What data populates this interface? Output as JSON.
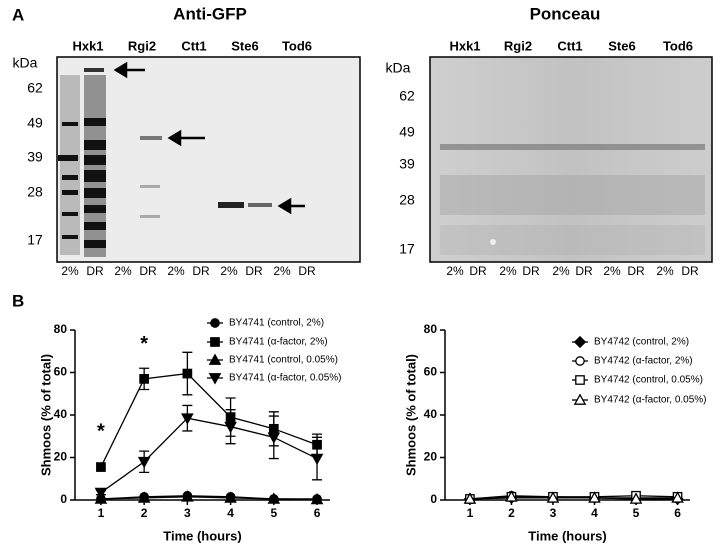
{
  "panels": {
    "a": "A",
    "b": "B"
  },
  "blots": [
    {
      "title": "Anti-GFP",
      "lanes": [
        "Hxk1",
        "Rgi2",
        "Ctt1",
        "Ste6",
        "Tod6"
      ],
      "unit": "kDa",
      "markers": [
        62,
        49,
        39,
        28,
        17
      ],
      "conditions": [
        "2%",
        "DR"
      ]
    },
    {
      "title": "Ponceau",
      "lanes": [
        "Hxk1",
        "Rgi2",
        "Ctt1",
        "Ste6",
        "Tod6"
      ],
      "unit": "kDa",
      "markers": [
        62,
        49,
        39,
        28,
        17
      ],
      "conditions": [
        "2%",
        "DR"
      ]
    }
  ],
  "chart_data": [
    {
      "type": "line",
      "xlabel": "Time (hours)",
      "ylabel": "Shmoos (% of total)",
      "x": [
        1,
        2,
        3,
        4,
        5,
        6
      ],
      "xlim": [
        0.4,
        6.3
      ],
      "xticks": [
        1,
        2,
        3,
        4,
        5,
        6
      ],
      "ylim": [
        0,
        80
      ],
      "yticks": [
        0,
        20,
        40,
        60,
        80
      ],
      "annotations": [
        {
          "text": "*",
          "x": 1,
          "y": 32
        },
        {
          "text": "*",
          "x": 2,
          "y": 73
        }
      ],
      "series": [
        {
          "name": "BY4741 (control, 2%)",
          "color": "#000000",
          "marker": "circle",
          "values": [
            0.5,
            1.5,
            2,
            1.5,
            0.5,
            0.5
          ]
        },
        {
          "name": "BY4741 (α-factor, 2%)",
          "color": "#000000",
          "marker": "square",
          "values": [
            15.5,
            57,
            59.5,
            39,
            33.5,
            26
          ],
          "errors": [
            0,
            5,
            10,
            9,
            8,
            5
          ]
        },
        {
          "name": "BY4741 (control, 0.05%)",
          "color": "#000000",
          "marker": "triangle",
          "values": [
            0.5,
            1,
            1.5,
            1,
            0.5,
            0.3
          ]
        },
        {
          "name": "BY4741 (α-factor, 0.05%)",
          "color": "#000000",
          "marker": "triangle-down",
          "values": [
            3.5,
            18,
            38.5,
            34.5,
            29.5,
            19.5
          ],
          "errors": [
            1,
            5,
            6,
            8,
            10,
            10
          ]
        }
      ]
    },
    {
      "type": "line",
      "xlabel": "Time (hours)",
      "ylabel": "Shmoos (% of total)",
      "x": [
        1,
        2,
        3,
        4,
        5,
        6
      ],
      "xlim": [
        0.4,
        6.3
      ],
      "xticks": [
        1,
        2,
        3,
        4,
        5,
        6
      ],
      "ylim": [
        0,
        80
      ],
      "yticks": [
        0,
        20,
        40,
        60,
        80
      ],
      "series": [
        {
          "name": "BY4742 (control, 2%)",
          "color": "#000000",
          "marker": "diamond",
          "values": [
            0.5,
            1,
            1,
            1,
            0.5,
            0.5
          ]
        },
        {
          "name": "BY4742 (α-factor, 2%)",
          "color": "#000000",
          "marker": "circle-open",
          "values": [
            0.5,
            2,
            1.5,
            1,
            1,
            1
          ]
        },
        {
          "name": "BY4742 (control, 0.05%)",
          "color": "#000000",
          "marker": "square-open",
          "values": [
            0.5,
            1.5,
            1.5,
            1.5,
            2,
            1.5
          ]
        },
        {
          "name": "BY4742 (α-factor, 0.05%)",
          "color": "#000000",
          "marker": "triangle-open",
          "values": [
            0.5,
            1.5,
            1,
            1,
            0.5,
            1
          ]
        }
      ]
    }
  ]
}
